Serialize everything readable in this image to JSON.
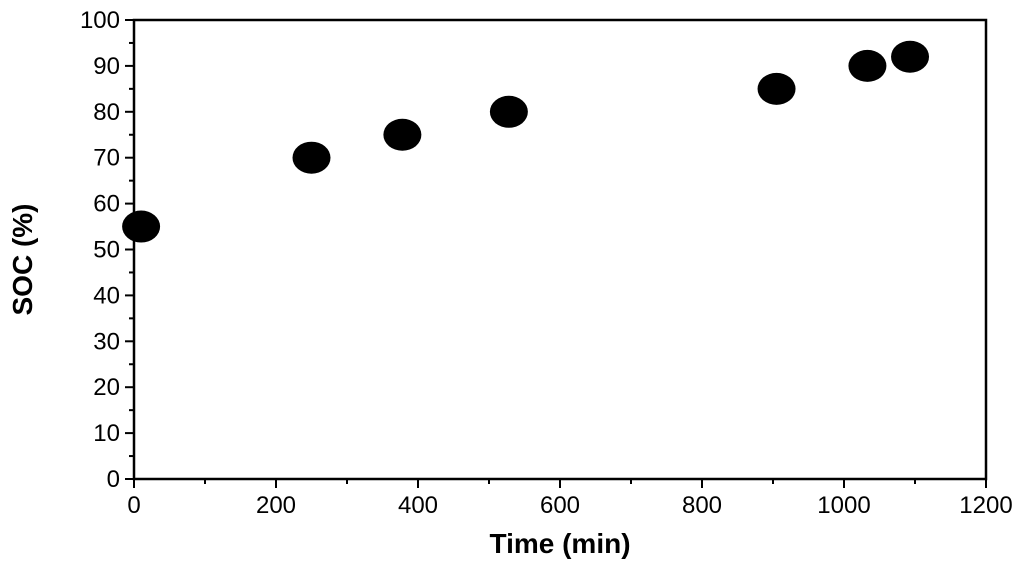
{
  "chart_data": {
    "type": "scatter",
    "title": "",
    "xlabel": "Time (min)",
    "ylabel": "SOC (%)",
    "xlim": [
      0,
      1200
    ],
    "ylim": [
      0,
      100
    ],
    "xticks": [
      0,
      200,
      400,
      600,
      800,
      1000,
      1200
    ],
    "yticks": [
      0,
      10,
      20,
      30,
      40,
      50,
      60,
      70,
      80,
      90,
      100
    ],
    "grid": false,
    "marker_color": "#000000",
    "series": [
      {
        "x": [
          10,
          250,
          378,
          528,
          905,
          1033,
          1093
        ],
        "y": [
          55,
          70,
          75,
          80,
          85,
          90,
          92
        ]
      }
    ]
  }
}
